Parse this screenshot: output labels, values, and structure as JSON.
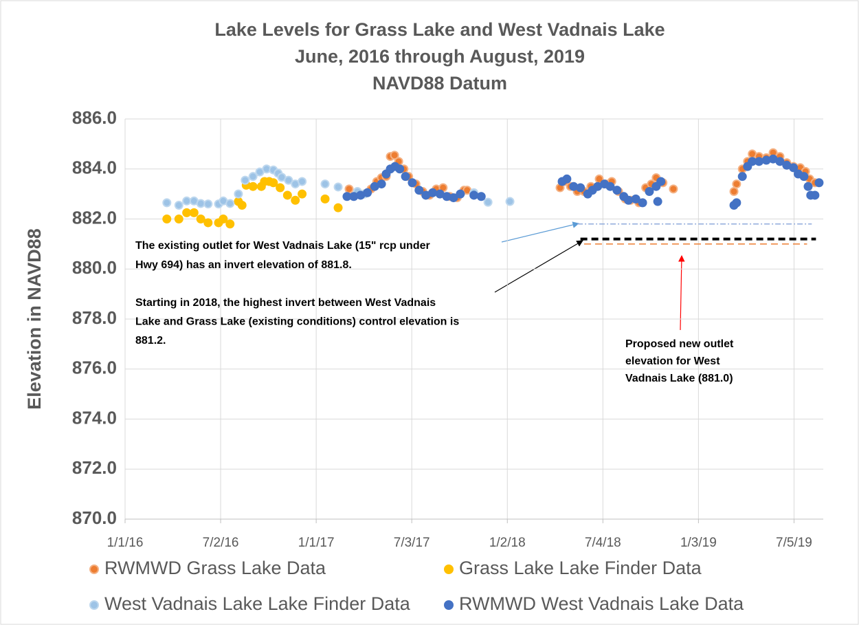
{
  "chart_data": {
    "type": "scatter",
    "title": [
      "Lake Levels for Grass Lake and West Vadnais Lake",
      "June, 2016 through August, 2019",
      "NAVD88 Datum"
    ],
    "ylabel": "Elevation in NAVD88",
    "xlim": [
      "2016-01-01",
      "2019-08-30"
    ],
    "xticks": [
      {
        "value": "2016-01-01",
        "label": "1/1/16"
      },
      {
        "value": "2016-07-02",
        "label": "7/2/16"
      },
      {
        "value": "2017-01-01",
        "label": "1/1/17"
      },
      {
        "value": "2017-07-03",
        "label": "7/3/17"
      },
      {
        "value": "2018-01-02",
        "label": "1/2/18"
      },
      {
        "value": "2018-07-04",
        "label": "7/4/18"
      },
      {
        "value": "2019-01-03",
        "label": "1/3/19"
      },
      {
        "value": "2019-07-05",
        "label": "7/5/19"
      }
    ],
    "ylim": [
      870,
      886
    ],
    "yticks": [
      {
        "value": 870,
        "label": "870.0"
      },
      {
        "value": 872,
        "label": "872.0"
      },
      {
        "value": 874,
        "label": "874.0"
      },
      {
        "value": 876,
        "label": "876.0"
      },
      {
        "value": 878,
        "label": "878.0"
      },
      {
        "value": 880,
        "label": "880.0"
      },
      {
        "value": 882,
        "label": "882.0"
      },
      {
        "value": 884,
        "label": "884.0"
      },
      {
        "value": 886,
        "label": "886.0"
      }
    ],
    "grid": true,
    "legend": "bottom",
    "series": [
      {
        "name": "RWMWD Grass Lake Data",
        "color": "#ED7D31",
        "edge_color": "#F4B183",
        "x": [
          "2017-03-05",
          "2017-03-21",
          "2017-04-03",
          "2017-04-16",
          "2017-04-27",
          "2017-05-06",
          "2017-05-15",
          "2017-05-23",
          "2017-05-31",
          "2017-06-08",
          "2017-06-18",
          "2017-06-27",
          "2017-07-11",
          "2017-07-24",
          "2017-08-06",
          "2017-08-19",
          "2017-09-01",
          "2017-09-14",
          "2017-09-28",
          "2017-10-11",
          "2017-10-17",
          "2018-04-13",
          "2018-04-22",
          "2018-05-03",
          "2018-05-16",
          "2018-05-29",
          "2018-06-11",
          "2018-06-27",
          "2018-07-10",
          "2018-07-21",
          "2018-08-03",
          "2018-08-16",
          "2018-08-26",
          "2018-09-11",
          "2018-09-24",
          "2018-10-05",
          "2018-10-14",
          "2018-10-27",
          "2018-11-16",
          "2019-03-12",
          "2019-03-17",
          "2019-03-28",
          "2019-04-07",
          "2019-04-16",
          "2019-04-29",
          "2019-05-13",
          "2019-05-26",
          "2019-06-08",
          "2019-06-21",
          "2019-07-04",
          "2019-07-17",
          "2019-07-27",
          "2019-08-04",
          "2019-08-14"
        ],
        "values": [
          883.2,
          883.0,
          883.0,
          883.2,
          883.5,
          883.65,
          883.7,
          884.5,
          884.55,
          884.3,
          884.0,
          883.7,
          883.4,
          883.1,
          882.95,
          883.2,
          883.25,
          882.9,
          882.85,
          883.15,
          883.15,
          883.25,
          883.5,
          883.3,
          883.1,
          883.1,
          883.3,
          883.6,
          883.4,
          883.5,
          883.1,
          882.8,
          882.75,
          882.65,
          883.25,
          883.4,
          883.65,
          883.45,
          883.2,
          883.1,
          883.4,
          884.0,
          884.3,
          884.6,
          884.5,
          884.45,
          884.65,
          884.5,
          884.25,
          884.1,
          884.05,
          883.9,
          883.6,
          883.45
        ]
      },
      {
        "name": "Grass Lake Lake Finder Data",
        "color": "#FFC000",
        "edge_color": "#FFC000",
        "x": [
          "2016-03-21",
          "2016-04-13",
          "2016-04-28",
          "2016-05-12",
          "2016-05-25",
          "2016-06-08",
          "2016-06-28",
          "2016-07-07",
          "2016-07-20",
          "2016-08-05",
          "2016-08-12",
          "2016-08-20",
          "2016-09-02",
          "2016-09-18",
          "2016-09-24",
          "2016-10-03",
          "2016-10-11",
          "2016-10-24",
          "2016-11-07",
          "2016-11-22",
          "2016-12-05",
          "2017-01-18",
          "2017-02-12"
        ],
        "values": [
          882.0,
          882.0,
          882.25,
          882.25,
          882.0,
          881.85,
          881.85,
          882.0,
          881.8,
          882.7,
          882.55,
          883.35,
          883.3,
          883.3,
          883.5,
          883.5,
          883.45,
          883.25,
          882.95,
          882.75,
          883.0,
          882.8,
          882.45
        ]
      },
      {
        "name": "West Vadnais Lake Lake Finder Data",
        "color": "#9DC3E6",
        "edge_color": "#BDD7EE",
        "x": [
          "2016-03-21",
          "2016-04-13",
          "2016-04-28",
          "2016-05-12",
          "2016-05-25",
          "2016-06-08",
          "2016-06-28",
          "2016-07-07",
          "2016-07-20",
          "2016-08-05",
          "2016-08-18",
          "2016-09-02",
          "2016-09-15",
          "2016-09-28",
          "2016-10-11",
          "2016-10-20",
          "2016-10-27",
          "2016-11-09",
          "2016-11-22",
          "2016-12-05",
          "2017-01-18",
          "2017-02-12",
          "2017-03-21",
          "2017-04-03",
          "2017-10-30",
          "2017-11-26",
          "2018-01-07"
        ],
        "values": [
          882.65,
          882.55,
          882.72,
          882.72,
          882.62,
          882.6,
          882.6,
          882.72,
          882.62,
          883.0,
          883.55,
          883.7,
          883.88,
          884.0,
          883.96,
          883.83,
          883.67,
          883.55,
          883.4,
          883.5,
          883.4,
          883.28,
          883.1,
          883.0,
          883.05,
          882.67,
          882.7
        ]
      },
      {
        "name": "RWMWD West Vadnais Lake Data",
        "color": "#4472C4",
        "edge_color": "#4472C4",
        "x": [
          "2017-03-01",
          "2017-03-14",
          "2017-03-27",
          "2017-04-09",
          "2017-04-23",
          "2017-05-06",
          "2017-05-15",
          "2017-05-23",
          "2017-06-01",
          "2017-06-10",
          "2017-06-21",
          "2017-07-04",
          "2017-07-17",
          "2017-07-30",
          "2017-08-12",
          "2017-08-26",
          "2017-09-08",
          "2017-09-21",
          "2017-10-04",
          "2017-10-30",
          "2017-11-13",
          "2018-04-17",
          "2018-04-26",
          "2018-05-09",
          "2018-05-22",
          "2018-06-05",
          "2018-06-14",
          "2018-06-24",
          "2018-07-07",
          "2018-07-18",
          "2018-07-31",
          "2018-08-13",
          "2018-08-22",
          "2018-09-05",
          "2018-09-18",
          "2018-10-01",
          "2018-10-14",
          "2018-10-17",
          "2018-10-23",
          "2019-03-12",
          "2019-03-17",
          "2019-03-28",
          "2019-04-07",
          "2019-04-16",
          "2019-04-29",
          "2019-05-13",
          "2019-05-26",
          "2019-06-08",
          "2019-06-21",
          "2019-07-04",
          "2019-07-13",
          "2019-07-24",
          "2019-08-01",
          "2019-08-06",
          "2019-08-14",
          "2019-08-22"
        ],
        "values": [
          882.9,
          882.9,
          882.95,
          883.05,
          883.3,
          883.4,
          883.8,
          884.0,
          884.1,
          884.0,
          883.7,
          883.45,
          883.15,
          882.95,
          883.05,
          883.0,
          882.9,
          882.85,
          883.0,
          882.95,
          882.9,
          883.5,
          883.6,
          883.3,
          883.25,
          883.0,
          883.15,
          883.3,
          883.4,
          883.3,
          883.15,
          882.9,
          882.75,
          882.8,
          882.65,
          883.1,
          883.3,
          882.7,
          883.5,
          882.55,
          882.65,
          883.7,
          884.1,
          884.3,
          884.3,
          884.35,
          884.4,
          884.3,
          884.15,
          884.05,
          883.8,
          883.7,
          883.3,
          882.95,
          882.95,
          883.45
        ]
      }
    ],
    "reference_lines": [
      {
        "value": 881.8,
        "x": [
          "2018-05-16",
          "2019-08-08"
        ],
        "color": "#8FAADC",
        "dash": "dashdot"
      },
      {
        "value": 881.2,
        "x": [
          "2018-05-22",
          "2019-08-16"
        ],
        "color": "#000000",
        "dash": "dash"
      },
      {
        "value": 881.0,
        "x": [
          "2018-05-29",
          "2019-07-30"
        ],
        "color": "#ED7D31",
        "dash": "dash"
      }
    ],
    "annotations": [
      [
        "The existing outlet for West Vadnais Lake (15\" rcp under",
        "Hwy 694) has an invert elevation of 881.8."
      ],
      [
        "Starting in 2018, the highest invert between West Vadnais",
        "Lake and Grass Lake (existing conditions) control elevation is",
        "881.2."
      ],
      [
        "Proposed new outlet",
        "elevation for West",
        "Vadnais Lake (881.0)"
      ]
    ]
  }
}
